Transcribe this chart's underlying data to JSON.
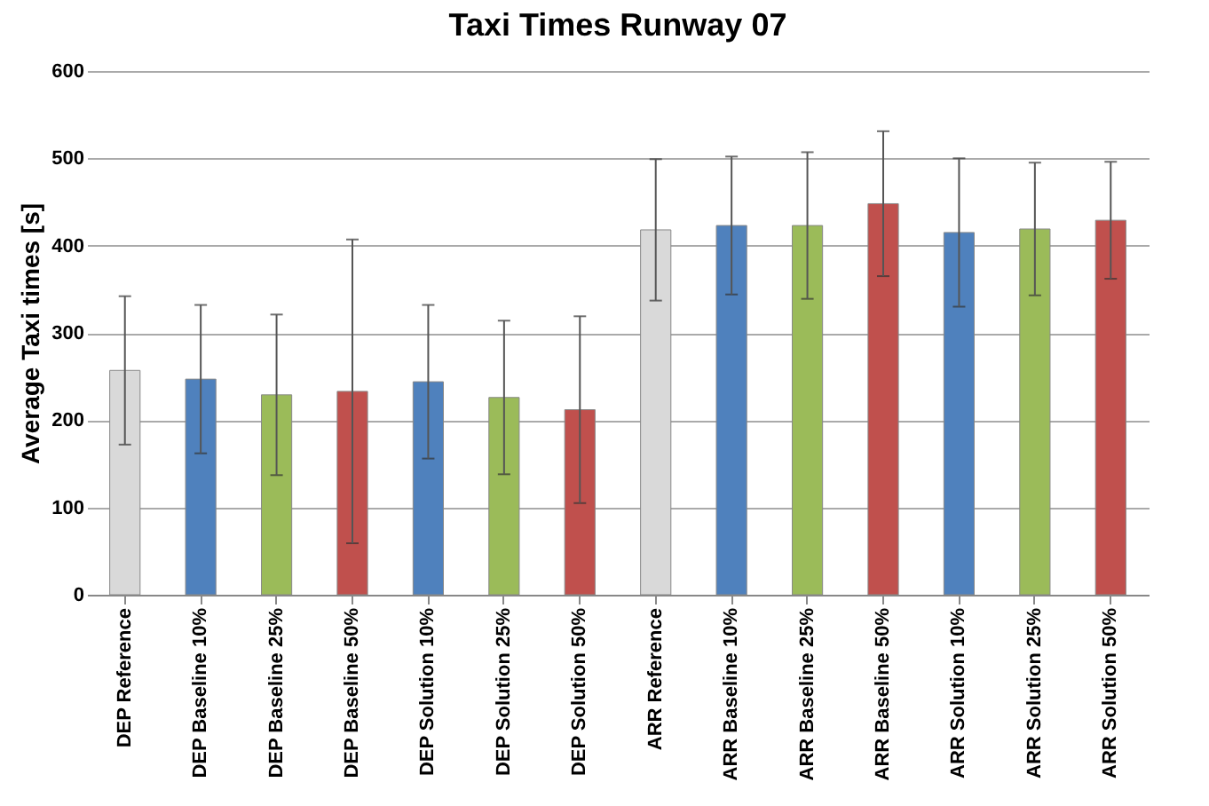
{
  "chart_data": {
    "type": "bar",
    "title": "Taxi Times Runway 07",
    "ylabel": "Average Taxi times [s]",
    "categories": [
      "DEP Reference",
      "DEP Baseline 10%",
      "DEP Baseline 25%",
      "DEP Baseline 50%",
      "DEP Solution 10%",
      "DEP Solution 25%",
      "DEP Solution 50%",
      "ARR Reference",
      "ARR Baseline 10%",
      "ARR Baseline 25%",
      "ARR Baseline 50%",
      "ARR Solution 10%",
      "ARR Solution 25%",
      "ARR Solution 50%"
    ],
    "values": [
      257,
      247,
      229,
      233,
      244,
      226,
      212,
      418,
      423,
      423,
      448,
      415,
      419,
      429
    ],
    "errors": [
      85,
      85,
      92,
      174,
      88,
      88,
      107,
      81,
      79,
      84,
      83,
      85,
      76,
      67
    ],
    "colors": [
      "#d9d9d9",
      "#4f81bd",
      "#9bbb59",
      "#c0504d",
      "#4f81bd",
      "#9bbb59",
      "#c0504d",
      "#d9d9d9",
      "#4f81bd",
      "#9bbb59",
      "#c0504d",
      "#4f81bd",
      "#9bbb59",
      "#c0504d"
    ],
    "ylim": [
      0,
      600
    ],
    "yticks": [
      0,
      100,
      200,
      300,
      400,
      500,
      600
    ],
    "grid": "y",
    "legend": false
  }
}
